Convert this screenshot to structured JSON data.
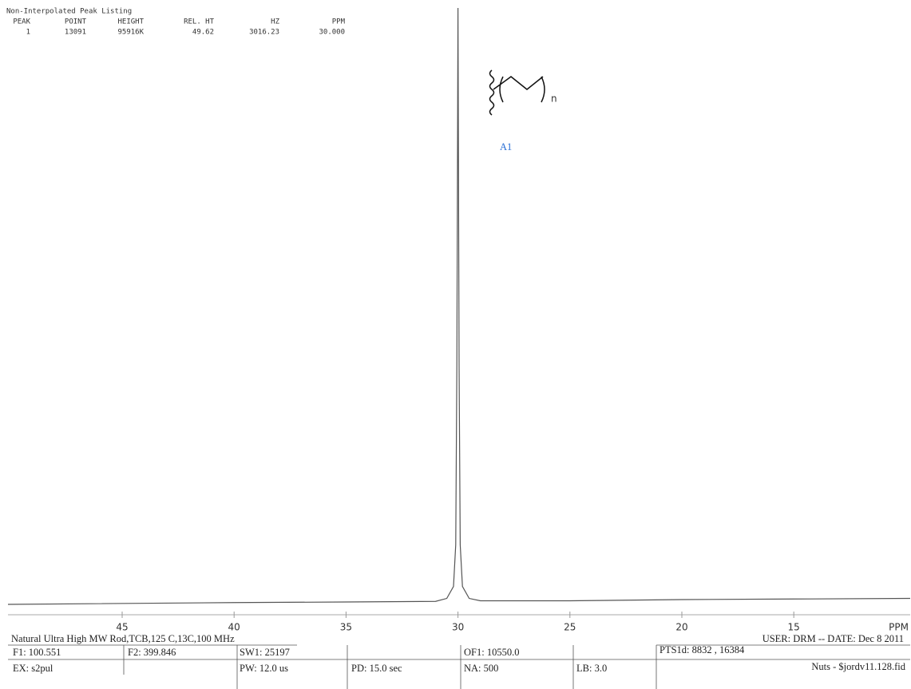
{
  "chart_data": {
    "type": "line",
    "x_label": "PPM",
    "x": [
      50.1,
      40,
      35,
      31,
      30.5,
      30.2,
      30.1,
      30.05,
      30,
      29.95,
      29.9,
      29.8,
      29.5,
      29,
      25,
      20,
      15,
      9.8
    ],
    "values": [
      0,
      0.3,
      0.4,
      0.5,
      1,
      3,
      10,
      40,
      100,
      40,
      10,
      3,
      1,
      0.6,
      0.6,
      0.8,
      0.9,
      1
    ],
    "color": "#555555",
    "xlim": [
      50.1,
      9.8
    ],
    "ylim": [
      0,
      100
    ],
    "xticks": [
      45,
      40,
      35,
      30,
      25,
      20,
      15
    ]
  },
  "peak_listing": {
    "title": "Non-Interpolated Peak Listing",
    "columns": [
      "PEAK",
      "POINT",
      "HEIGHT",
      "REL. HT",
      "HZ",
      "PPM"
    ],
    "rows": [
      [
        "1",
        "13091",
        "95916K",
        "49.62",
        "3016.23",
        "30.000"
      ]
    ]
  },
  "structure": {
    "subscript": "n",
    "label": "A1"
  },
  "footer": {
    "title": "Natural Ultra High MW Rod,TCB,125 C,13C,100 MHz",
    "user": "USER: DRM -- DATE: Dec 8 2011",
    "row1": [
      "F1: 100.551",
      "F2: 399.846",
      "SW1: 25197",
      "OF1: 10550.0",
      "PTS1d: 8832 , 16384"
    ],
    "row2": [
      "EX: s2pul",
      "PW: 12.0 us",
      "PD: 15.0 sec",
      "NA: 500",
      "LB: 3.0",
      "Nuts - $jordv11.128.fid"
    ]
  }
}
